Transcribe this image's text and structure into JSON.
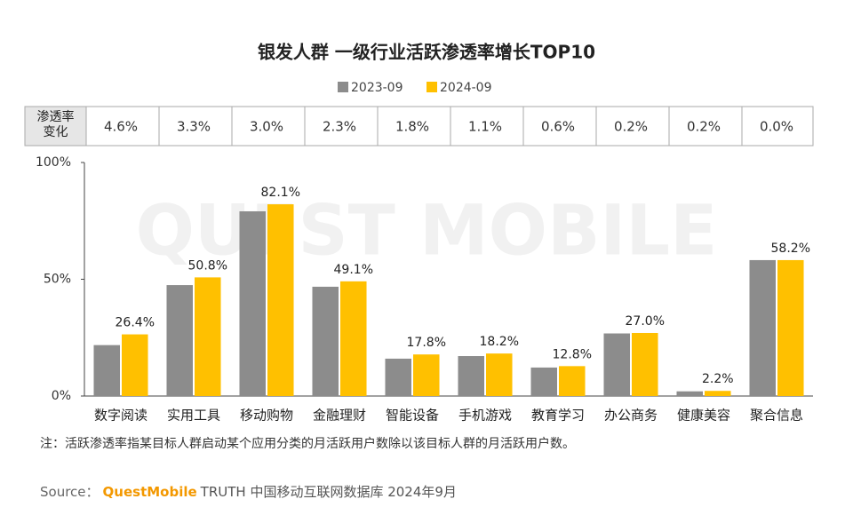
{
  "chart_data": {
    "type": "bar",
    "title": "银发人群 一级行业活跃渗透率增长TOP10",
    "categories": [
      "数字阅读",
      "实用工具",
      "移动购物",
      "金融理财",
      "智能设备",
      "手机游戏",
      "教育学习",
      "办公商务",
      "健康美容",
      "聚合信息"
    ],
    "series": [
      {
        "name": "2023-09",
        "color": "#8c8c8c",
        "values": [
          21.8,
          47.5,
          79.1,
          46.8,
          16.0,
          17.1,
          12.2,
          26.8,
          2.0,
          58.2
        ]
      },
      {
        "name": "2024-09",
        "color": "#ffc000",
        "values": [
          26.4,
          50.8,
          82.1,
          49.1,
          17.8,
          18.2,
          12.8,
          27.0,
          2.2,
          58.2
        ],
        "value_labels": [
          "26.4%",
          "50.8%",
          "82.1%",
          "49.1%",
          "17.8%",
          "18.2%",
          "12.8%",
          "27.0%",
          "2.2%",
          "58.2%"
        ]
      }
    ],
    "change_row": {
      "label": "渗透率变化",
      "values": [
        4.6,
        3.3,
        3.0,
        2.3,
        1.8,
        1.1,
        0.6,
        0.2,
        0.2,
        0.0
      ],
      "value_labels": [
        "4.6%",
        "3.3%",
        "3.0%",
        "2.3%",
        "1.8%",
        "1.1%",
        "0.6%",
        "0.2%",
        "0.2%",
        "0.0%"
      ]
    },
    "ylim": [
      0,
      100
    ],
    "yticks": [
      {
        "value": 0,
        "label": "0%"
      },
      {
        "value": 50,
        "label": "50%"
      },
      {
        "value": 100,
        "label": "100%"
      }
    ],
    "note": "注：活跃渗透率指某目标人群启动某个应用分类的月活跃用户数除以该目标人群的月活跃用户数。",
    "source_prefix": "Source：",
    "source_brand": "QuestMobile",
    "source_text": "TRUTH 中国移动互联网数据库 2024年9月",
    "watermark": "QUEST MOBILE"
  }
}
